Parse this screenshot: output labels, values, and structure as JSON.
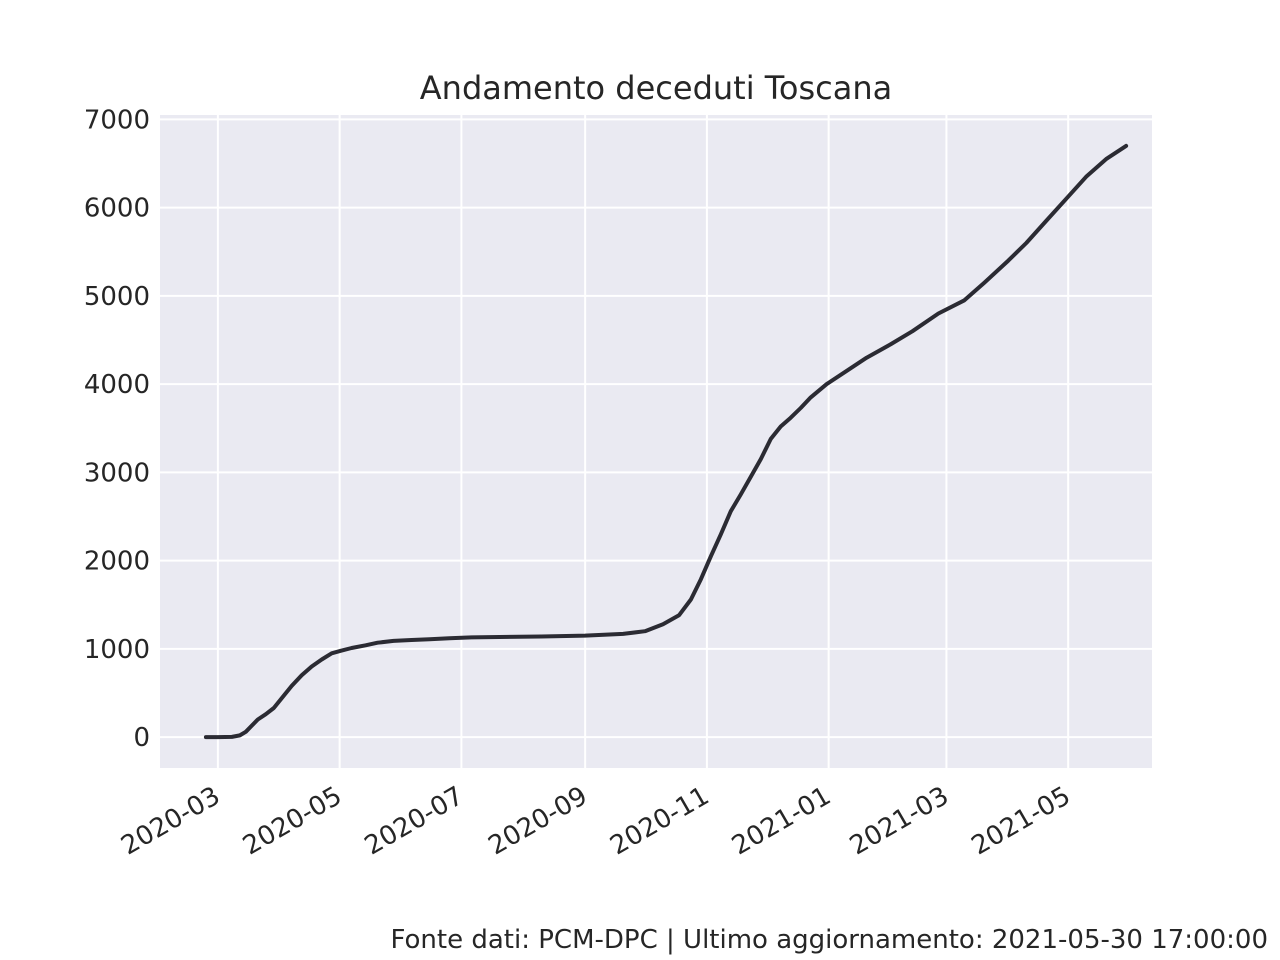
{
  "chart_data": {
    "type": "line",
    "title": "Andamento deceduti Toscana",
    "xlabel": "",
    "ylabel": "",
    "grid": true,
    "xlim": [
      "2020-02-01",
      "2021-06-12"
    ],
    "ylim": [
      -350,
      7050
    ],
    "yticks": [
      0,
      1000,
      2000,
      3000,
      4000,
      5000,
      6000,
      7000
    ],
    "xticks": [
      "2020-03",
      "2020-05",
      "2020-07",
      "2020-09",
      "2020-11",
      "2021-01",
      "2021-03",
      "2021-05"
    ],
    "series": [
      {
        "x": [
          "2020-02-24",
          "2020-03-01",
          "2020-03-08",
          "2020-03-12",
          "2020-03-15",
          "2020-03-18",
          "2020-03-21",
          "2020-03-25",
          "2020-03-29",
          "2020-04-03",
          "2020-04-07",
          "2020-04-12",
          "2020-04-17",
          "2020-04-22",
          "2020-04-27",
          "2020-05-02",
          "2020-05-07",
          "2020-05-14",
          "2020-05-20",
          "2020-05-28",
          "2020-06-06",
          "2020-06-15",
          "2020-06-25",
          "2020-07-06",
          "2020-07-20",
          "2020-08-10",
          "2020-09-01",
          "2020-09-20",
          "2020-10-01",
          "2020-10-10",
          "2020-10-18",
          "2020-10-24",
          "2020-10-29",
          "2020-11-03",
          "2020-11-08",
          "2020-11-13",
          "2020-11-18",
          "2020-11-23",
          "2020-11-28",
          "2020-12-03",
          "2020-12-08",
          "2020-12-13",
          "2020-12-18",
          "2020-12-23",
          "2020-12-31",
          "2021-01-10",
          "2021-01-20",
          "2021-02-01",
          "2021-02-12",
          "2021-02-25",
          "2021-03-10",
          "2021-03-20",
          "2021-04-01",
          "2021-04-10",
          "2021-04-20",
          "2021-04-30",
          "2021-05-10",
          "2021-05-20",
          "2021-05-30"
        ],
        "y": [
          0,
          0,
          2,
          20,
          60,
          130,
          200,
          260,
          330,
          470,
          580,
          700,
          800,
          880,
          950,
          980,
          1010,
          1040,
          1070,
          1090,
          1100,
          1110,
          1120,
          1130,
          1135,
          1140,
          1150,
          1170,
          1200,
          1280,
          1380,
          1560,
          1790,
          2050,
          2300,
          2560,
          2750,
          2950,
          3150,
          3380,
          3520,
          3620,
          3730,
          3850,
          4000,
          4150,
          4300,
          4450,
          4600,
          4800,
          4950,
          5150,
          5400,
          5600,
          5850,
          6100,
          6350,
          6550,
          6700
        ]
      }
    ]
  },
  "footer": "Fonte dati: PCM-DPC | Ultimo aggiornamento: 2021-05-30 17:00:00",
  "colors": {
    "plot_background": "#eaeaf2",
    "grid": "#ffffff",
    "line": "#2b2b33",
    "text": "#262626"
  }
}
